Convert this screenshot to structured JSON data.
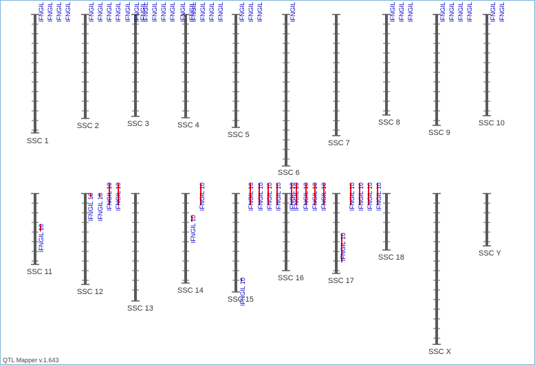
{
  "app": {
    "version_label": "QTL Mapper v.1.643"
  },
  "colors": {
    "chromosome": "#5a5a5a",
    "qtl_bar": "#ff0000",
    "qtl_label": "#0000cc",
    "chr_label": "#333333",
    "frame": "#7fb2d8"
  },
  "chromosomes": [
    {
      "id": "SSC 1",
      "qtls": [
        "IFNGIL",
        "IFNGIL",
        "IFNGIL",
        "IFNGIL"
      ]
    },
    {
      "id": "SSC 2",
      "qtls": [
        "IFNGIL",
        "IFNGIL",
        "IFNGIL",
        "IFNGIL"
      ]
    },
    {
      "id": "SSC 3",
      "qtls": [
        "IFNGIL",
        "IFNGIL",
        "IFNGIL",
        "IFNGIL",
        "IFNGIL",
        "IFNGIL",
        "IFNGIL"
      ]
    },
    {
      "id": "SSC 4",
      "qtls": [
        "IFNGIL",
        "IFNGIL",
        "IFNGIL",
        "IFNGIL",
        "IFNGIL",
        "IFNGIL"
      ]
    },
    {
      "id": "SSC 5",
      "qtls": [
        "IFNGIL",
        "IFNGIL",
        "IFNGIL"
      ]
    },
    {
      "id": "SSC 6",
      "qtls": [
        "IFNGIL"
      ]
    },
    {
      "id": "SSC 7",
      "qtls": []
    },
    {
      "id": "SSC 8",
      "qtls": [
        "IFNGIL",
        "IFNGIL",
        "IFNGIL"
      ]
    },
    {
      "id": "SSC 9",
      "qtls": [
        "IFNGIL",
        "IFNGIL",
        "IFNGIL",
        "IFNGIL"
      ]
    },
    {
      "id": "SSC 10",
      "qtls": [
        "IFNGIL",
        "IFNGIL"
      ]
    },
    {
      "id": "SSC 11",
      "qtls": [
        "IFNGIL 10"
      ]
    },
    {
      "id": "SSC 12",
      "qtls": [
        "IFNGIL 10",
        "IFNGIL 10",
        "IFNGIL 10",
        "IFNGIL 10"
      ]
    },
    {
      "id": "SSC 13",
      "qtls": []
    },
    {
      "id": "SSC 14",
      "qtls": [
        "IFNGIL 10",
        "IFNGIL 10"
      ]
    },
    {
      "id": "SSC 15",
      "qtls": [
        "IFNGIL 10"
      ]
    },
    {
      "id": "SSC 16",
      "qtls": [
        "IFNGIL 10",
        "IFNGIL 10",
        "IFNGIL 10",
        "IFNGIL 10",
        "IFNGIL 10",
        "IFNGIL 10",
        "IFNGIL 10",
        "IFNGIL 10",
        "IFNGIL 10"
      ]
    },
    {
      "id": "SSC 17",
      "qtls": [
        "IFNGIL 10"
      ]
    },
    {
      "id": "SSC 18",
      "qtls": [
        "IFNGIL 10",
        "IFNGIL 10",
        "IFNGIL 10",
        "IFNGIL 10"
      ]
    },
    {
      "id": "SSC X",
      "qtls": []
    },
    {
      "id": "SSC Y",
      "qtls": []
    }
  ]
}
